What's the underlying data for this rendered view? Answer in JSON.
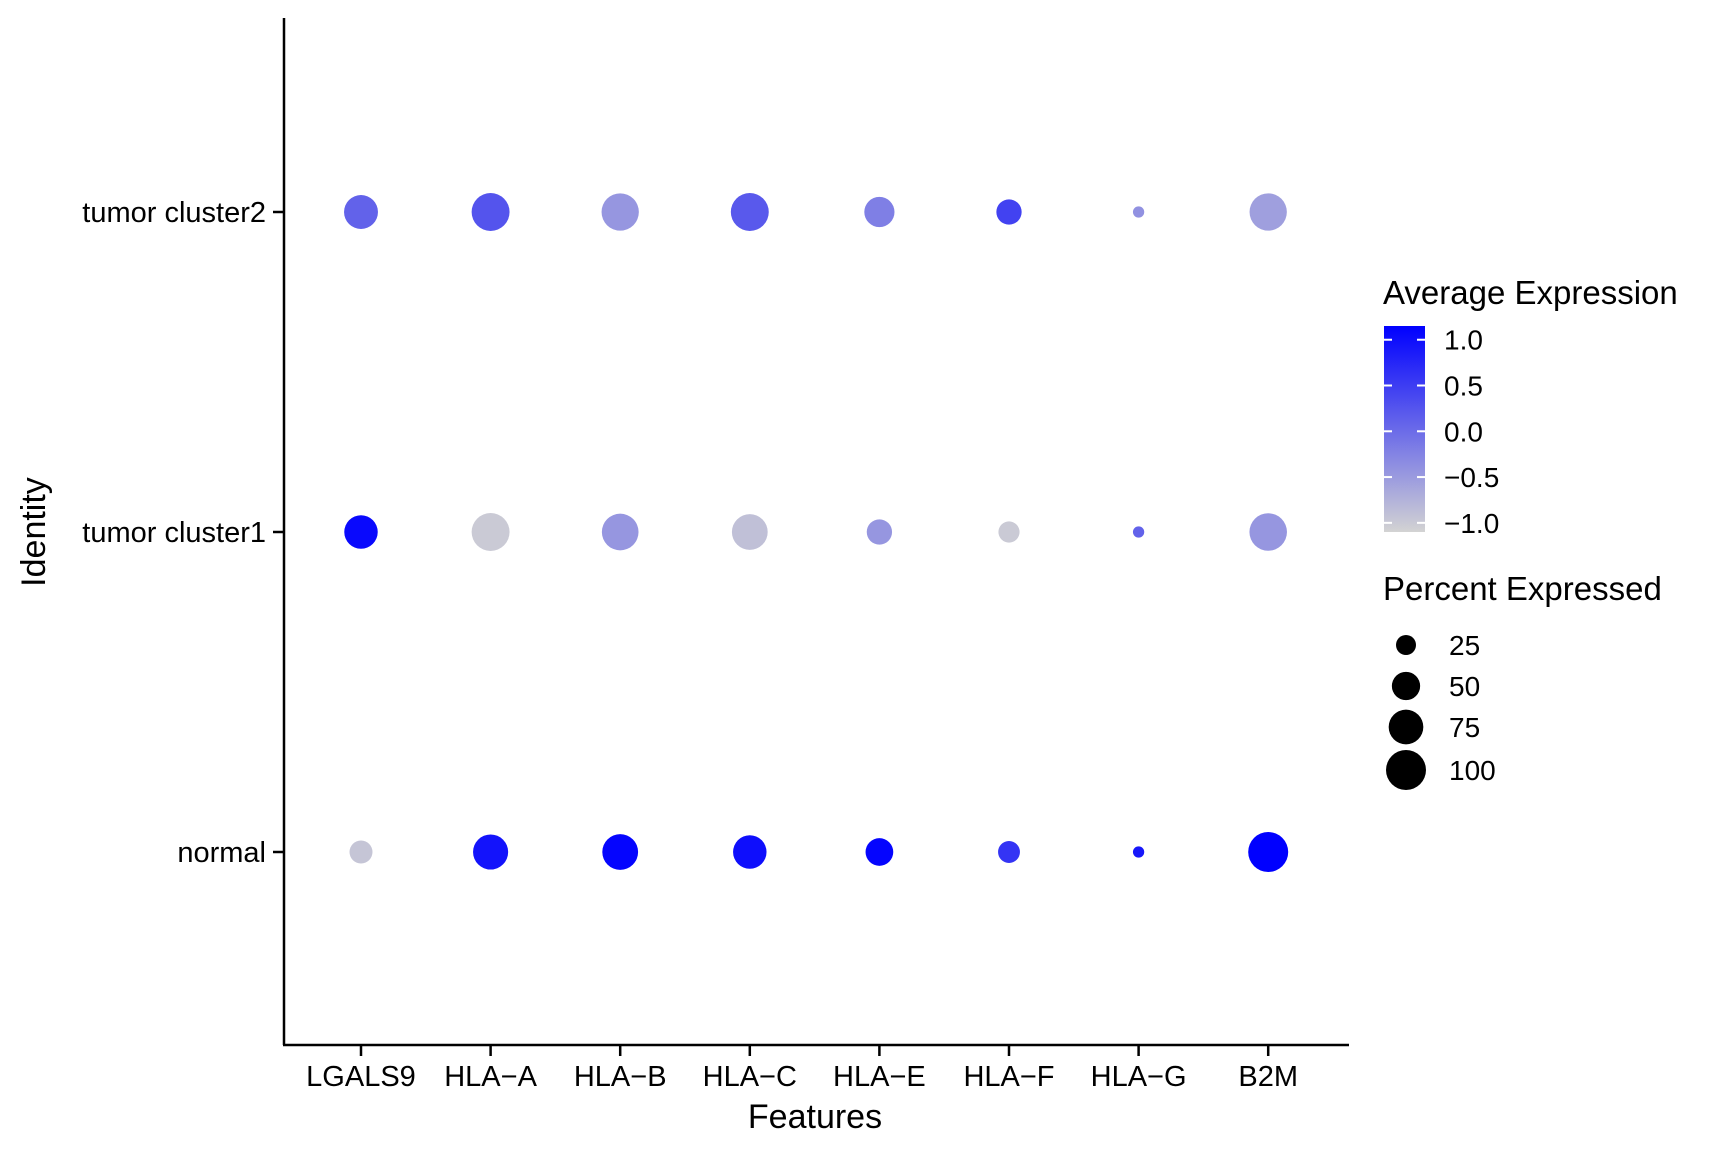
{
  "chart_data": {
    "type": "dot",
    "xlabel": "Features",
    "ylabel": "Identity",
    "features": [
      "LGALS9",
      "HLA−A",
      "HLA−B",
      "HLA−C",
      "HLA−E",
      "HLA−F",
      "HLA−G",
      "B2M"
    ],
    "identities": [
      "normal",
      "tumor cluster1",
      "tumor cluster2"
    ],
    "avg_expression": [
      [
        -0.95,
        0.95,
        1.1,
        1.0,
        1.1,
        0.6,
        0.9,
        1.15
      ],
      [
        1.05,
        -1.0,
        -0.45,
        -0.9,
        -0.45,
        -1.0,
        0.1,
        -0.45
      ],
      [
        0.1,
        0.25,
        -0.45,
        0.2,
        -0.2,
        0.45,
        -0.4,
        -0.55
      ]
    ],
    "pct_expressed": [
      [
        33,
        77,
        80,
        70,
        48,
        30,
        8,
        100
      ],
      [
        70,
        90,
        84,
        80,
        40,
        28,
        8,
        88
      ],
      [
        72,
        90,
        87,
        90,
        57,
        40,
        8,
        87
      ]
    ],
    "legend": {
      "color_title": "Average Expression",
      "color_ticks": [
        1.0,
        0.5,
        0.0,
        -0.5,
        -1.0
      ],
      "color_tick_labels": [
        "1.0",
        "0.5",
        "0.0",
        "−0.5",
        "−1.0"
      ],
      "color_low": "#d3d3d3",
      "color_high": "#0000ff",
      "color_range": [
        -1.1,
        1.15
      ],
      "size_title": "Percent Expressed",
      "size_values": [
        25,
        50,
        75,
        100
      ],
      "size_labels": [
        "25",
        "50",
        "75",
        "100"
      ]
    },
    "grid": false,
    "legend_position": "right"
  }
}
